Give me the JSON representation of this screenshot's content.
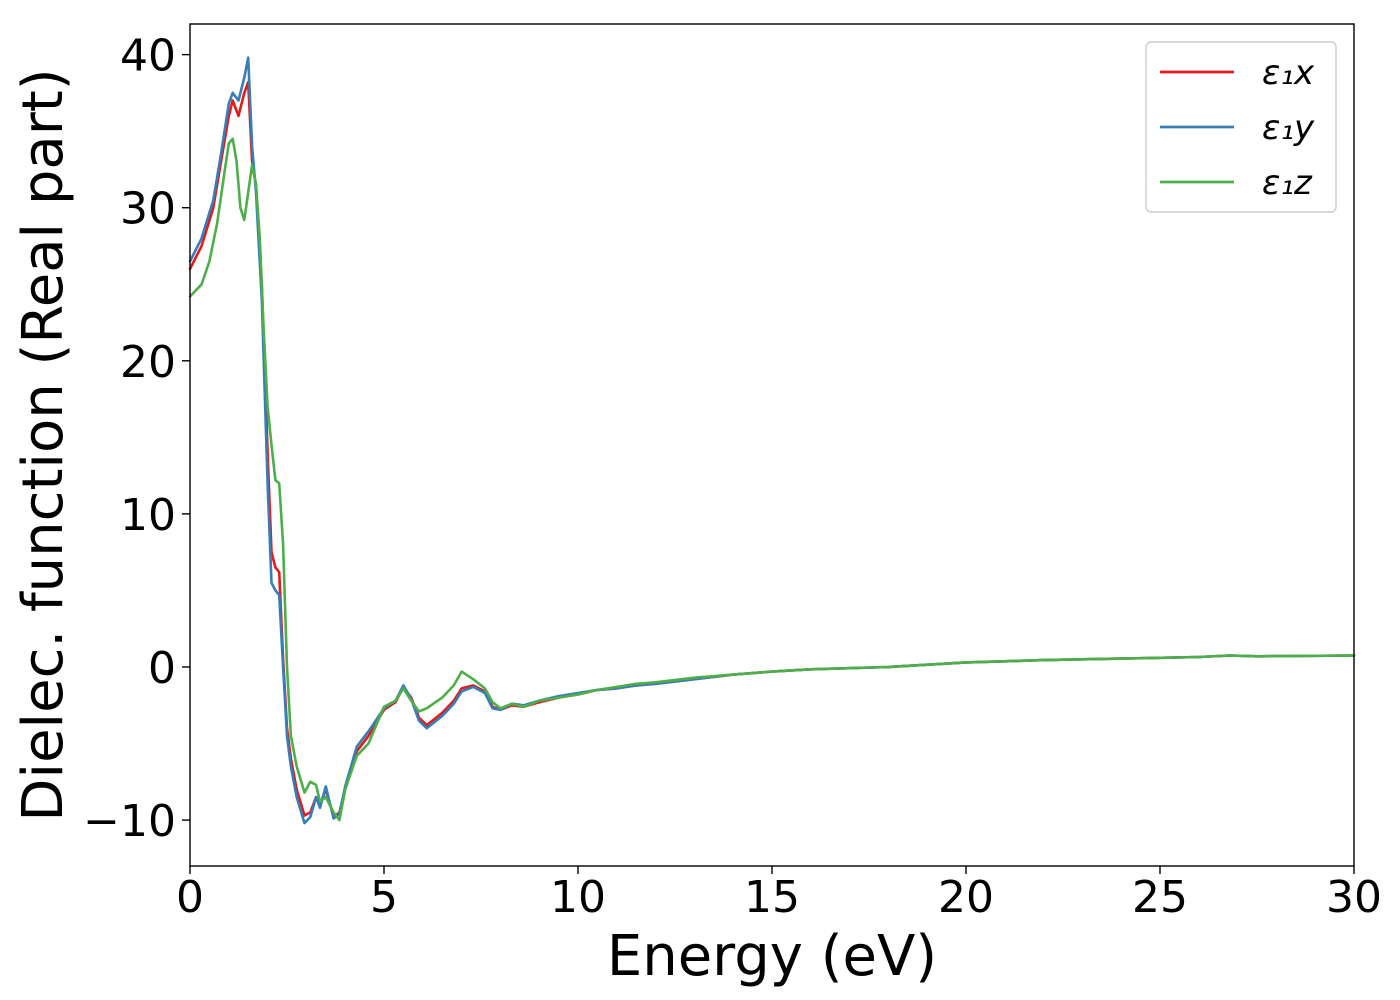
{
  "chart_data": {
    "type": "line",
    "title": "",
    "xlabel": "Energy (eV)",
    "ylabel": "Dielec. function (Real part)",
    "xlim": [
      0,
      30
    ],
    "ylim": [
      -13,
      42
    ],
    "xticks": [
      0,
      5,
      10,
      15,
      20,
      25,
      30
    ],
    "xtick_labels": [
      "0",
      "5",
      "10",
      "15",
      "20",
      "25",
      "30"
    ],
    "yticks": [
      -10,
      0,
      10,
      20,
      30,
      40
    ],
    "ytick_labels": [
      "−10",
      "0",
      "10",
      "20",
      "30",
      "40"
    ],
    "grid": false,
    "legend_position": "top-right",
    "series": [
      {
        "name": "ε₁x",
        "color": "#e41a1c",
        "x": [
          0,
          0.3,
          0.6,
          0.8,
          1.0,
          1.1,
          1.25,
          1.4,
          1.5,
          1.6,
          1.7,
          1.85,
          2.0,
          2.1,
          2.2,
          2.3,
          2.4,
          2.5,
          2.6,
          2.75,
          2.95,
          3.1,
          3.25,
          3.35,
          3.5,
          3.7,
          3.85,
          4.0,
          4.3,
          4.6,
          5.0,
          5.3,
          5.5,
          5.7,
          5.9,
          6.1,
          6.5,
          6.8,
          7.0,
          7.3,
          7.6,
          7.8,
          8.0,
          8.3,
          8.6,
          9.0,
          9.5,
          10.0,
          10.5,
          11.0,
          11.5,
          12.0,
          13.0,
          14.0,
          15.0,
          16.0,
          18.0,
          20.0,
          22.0,
          24.0,
          26.0,
          26.8,
          27.5,
          30.0
        ],
        "y": [
          26.0,
          27.5,
          30.0,
          33.0,
          36.0,
          37.0,
          36.0,
          37.5,
          38.2,
          33.0,
          31.5,
          25.0,
          14.0,
          7.5,
          6.5,
          6.2,
          0.5,
          -4.0,
          -6.0,
          -8.0,
          -9.7,
          -9.5,
          -8.5,
          -9.0,
          -8.0,
          -9.8,
          -9.5,
          -8.0,
          -5.5,
          -4.5,
          -2.8,
          -2.3,
          -1.3,
          -2.0,
          -3.3,
          -3.8,
          -3.0,
          -2.2,
          -1.4,
          -1.2,
          -1.6,
          -2.6,
          -2.8,
          -2.5,
          -2.6,
          -2.3,
          -2.0,
          -1.8,
          -1.5,
          -1.4,
          -1.2,
          -1.1,
          -0.8,
          -0.5,
          -0.3,
          -0.15,
          0.0,
          0.3,
          0.45,
          0.55,
          0.65,
          0.75,
          0.7,
          0.75
        ]
      },
      {
        "name": "ε₁y",
        "color": "#377eb8",
        "x": [
          0,
          0.3,
          0.6,
          0.8,
          1.0,
          1.1,
          1.25,
          1.4,
          1.5,
          1.6,
          1.7,
          1.85,
          2.0,
          2.1,
          2.2,
          2.3,
          2.4,
          2.5,
          2.6,
          2.75,
          2.95,
          3.1,
          3.25,
          3.35,
          3.5,
          3.7,
          3.85,
          4.0,
          4.3,
          4.6,
          5.0,
          5.3,
          5.5,
          5.7,
          5.9,
          6.1,
          6.5,
          6.8,
          7.0,
          7.3,
          7.6,
          7.8,
          8.0,
          8.3,
          8.6,
          9.0,
          9.5,
          10.0,
          10.5,
          11.0,
          11.5,
          12.0,
          13.0,
          14.0,
          15.0,
          16.0,
          18.0,
          20.0,
          22.0,
          24.0,
          26.0,
          26.8,
          27.5,
          30.0
        ],
        "y": [
          26.5,
          28.0,
          30.5,
          33.5,
          36.8,
          37.5,
          37.0,
          38.5,
          39.8,
          34.0,
          31.0,
          24.0,
          12.0,
          5.5,
          5.0,
          4.7,
          0.0,
          -4.5,
          -6.5,
          -8.5,
          -10.2,
          -9.8,
          -8.5,
          -9.2,
          -7.8,
          -9.9,
          -9.6,
          -7.8,
          -5.2,
          -4.2,
          -2.7,
          -2.2,
          -1.2,
          -2.1,
          -3.5,
          -4.0,
          -3.2,
          -2.4,
          -1.6,
          -1.3,
          -1.7,
          -2.7,
          -2.8,
          -2.4,
          -2.5,
          -2.2,
          -1.9,
          -1.7,
          -1.5,
          -1.4,
          -1.2,
          -1.1,
          -0.8,
          -0.5,
          -0.3,
          -0.15,
          0.0,
          0.3,
          0.45,
          0.55,
          0.65,
          0.75,
          0.7,
          0.75
        ]
      },
      {
        "name": "ε₁z",
        "color": "#4daf4a",
        "x": [
          0,
          0.3,
          0.5,
          0.7,
          0.9,
          1.0,
          1.1,
          1.2,
          1.3,
          1.4,
          1.5,
          1.6,
          1.7,
          1.8,
          1.9,
          2.0,
          2.1,
          2.2,
          2.3,
          2.4,
          2.5,
          2.6,
          2.75,
          2.95,
          3.1,
          3.25,
          3.35,
          3.5,
          3.7,
          3.85,
          4.0,
          4.3,
          4.6,
          5.0,
          5.3,
          5.5,
          5.7,
          5.9,
          6.1,
          6.5,
          6.8,
          7.0,
          7.3,
          7.6,
          7.8,
          8.0,
          8.3,
          8.6,
          9.0,
          9.5,
          10.0,
          10.5,
          11.0,
          11.5,
          12.0,
          13.0,
          14.0,
          15.0,
          16.0,
          18.0,
          20.0,
          22.0,
          24.0,
          26.0,
          26.8,
          27.5,
          30.0
        ],
        "y": [
          24.2,
          25.0,
          26.5,
          29.0,
          32.5,
          34.2,
          34.5,
          33.0,
          30.0,
          29.2,
          31.0,
          32.8,
          31.5,
          28.0,
          22.0,
          17.0,
          14.5,
          12.2,
          12.0,
          8.0,
          0.0,
          -4.5,
          -6.5,
          -8.2,
          -7.5,
          -7.7,
          -8.8,
          -8.5,
          -9.5,
          -10.0,
          -8.0,
          -5.8,
          -5.0,
          -2.6,
          -2.2,
          -1.4,
          -2.2,
          -2.9,
          -2.7,
          -2.0,
          -1.2,
          -0.3,
          -0.8,
          -1.4,
          -2.3,
          -2.7,
          -2.4,
          -2.6,
          -2.2,
          -2.0,
          -1.8,
          -1.5,
          -1.3,
          -1.1,
          -1.0,
          -0.7,
          -0.5,
          -0.3,
          -0.15,
          0.0,
          0.3,
          0.45,
          0.55,
          0.65,
          0.75,
          0.7,
          0.75
        ]
      }
    ]
  }
}
